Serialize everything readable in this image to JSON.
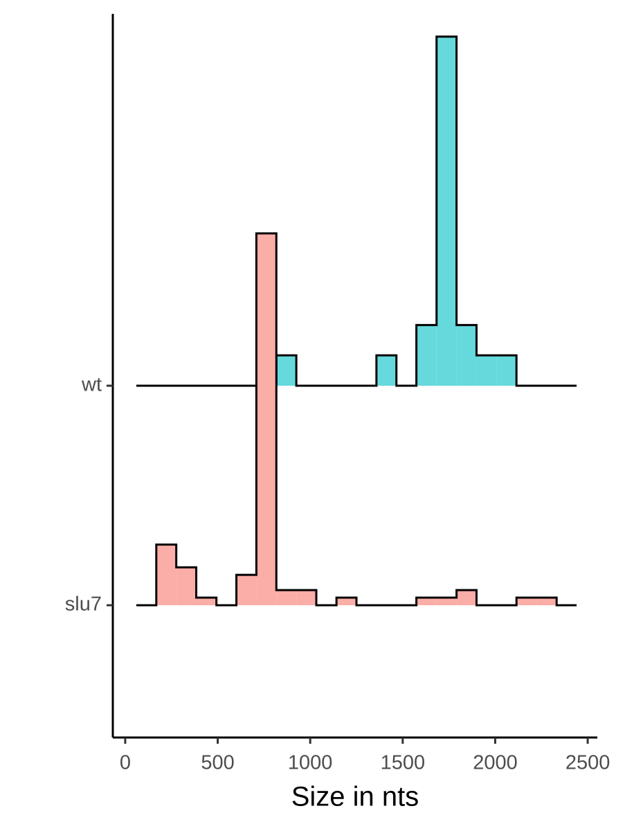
{
  "chart_data": {
    "type": "ridgeline_histogram",
    "x_label": "Size in nts",
    "categories": [
      "slu7",
      "wt"
    ],
    "bins": [
      60,
      168,
      276,
      384,
      493,
      601,
      709,
      817,
      925,
      1033,
      1142,
      1250,
      1358,
      1466,
      1574,
      1683,
      1791,
      1899,
      2007,
      2115,
      2224,
      2332,
      2440
    ],
    "series": [
      {
        "name": "wt",
        "color": "#66d9dc",
        "values": [
          0,
          0,
          0,
          0,
          0,
          0,
          0,
          4,
          0,
          0,
          0,
          0,
          4,
          0,
          8,
          46,
          8,
          4,
          4,
          0,
          0,
          0
        ]
      },
      {
        "name": "slu7",
        "color": "#fbada7",
        "values": [
          0,
          8,
          5,
          1,
          0,
          4,
          49,
          2,
          2,
          0,
          1,
          0,
          0,
          0,
          1,
          1,
          2,
          0,
          0,
          1,
          1,
          0
        ]
      }
    ],
    "xlim": [
      -67,
      2552
    ],
    "xticks": [
      0,
      500,
      1000,
      1500,
      2000,
      2500
    ]
  }
}
